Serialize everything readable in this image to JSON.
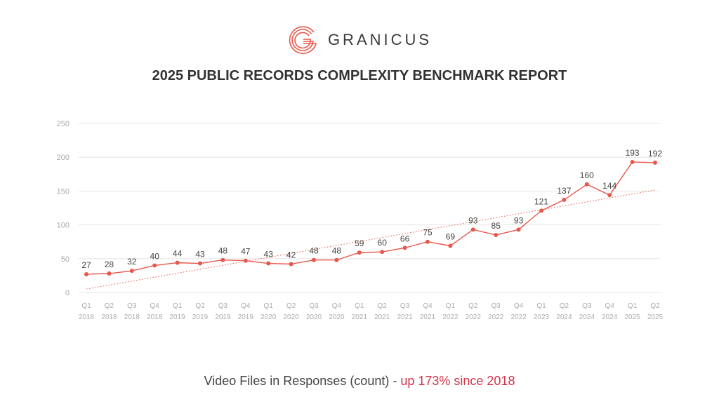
{
  "brand": {
    "name": "GRANICUS",
    "logo_icon": "granicus-logo-icon",
    "logo_color": "#e8574c"
  },
  "report_title": "2025 PUBLIC RECORDS COMPLEXITY BENCHMARK REPORT",
  "caption": {
    "prefix": "Video Files in Responses (count) - ",
    "highlight": "up 173% since 2018",
    "highlight_color": "#d1344a"
  },
  "chart_data": {
    "type": "line",
    "title": "2025 PUBLIC RECORDS COMPLEXITY BENCHMARK REPORT",
    "xlabel": "",
    "ylabel": "",
    "ylim": [
      0,
      250
    ],
    "yticks": [
      0,
      50,
      100,
      150,
      200,
      250
    ],
    "grid": true,
    "categories": [
      [
        "Q1",
        "2018"
      ],
      [
        "Q2",
        "2018"
      ],
      [
        "Q3",
        "2018"
      ],
      [
        "Q4",
        "2018"
      ],
      [
        "Q1",
        "2019"
      ],
      [
        "Q2",
        "2019"
      ],
      [
        "Q3",
        "2019"
      ],
      [
        "Q4",
        "2019"
      ],
      [
        "Q1",
        "2020"
      ],
      [
        "Q2",
        "2020"
      ],
      [
        "Q3",
        "2020"
      ],
      [
        "Q4",
        "2020"
      ],
      [
        "Q1",
        "2021"
      ],
      [
        "Q2",
        "2021"
      ],
      [
        "Q3",
        "2021"
      ],
      [
        "Q4",
        "2021"
      ],
      [
        "Q1",
        "2022"
      ],
      [
        "Q2",
        "2022"
      ],
      [
        "Q3",
        "2022"
      ],
      [
        "Q4",
        "2022"
      ],
      [
        "Q1",
        "2023"
      ],
      [
        "Q2",
        "2024"
      ],
      [
        "Q3",
        "2024"
      ],
      [
        "Q4",
        "2024"
      ],
      [
        "Q1",
        "2025"
      ],
      [
        "Q2",
        "2025"
      ]
    ],
    "series": [
      {
        "name": "Video Files in Responses (count)",
        "values": [
          27,
          28,
          32,
          40,
          44,
          43,
          48,
          47,
          43,
          42,
          48,
          48,
          59,
          60,
          66,
          75,
          69,
          93,
          85,
          93,
          121,
          137,
          160,
          144,
          193,
          192
        ],
        "color": "#e8574c"
      }
    ],
    "trendline": {
      "type": "linear",
      "style": "dotted",
      "color": "#e8574c"
    }
  }
}
